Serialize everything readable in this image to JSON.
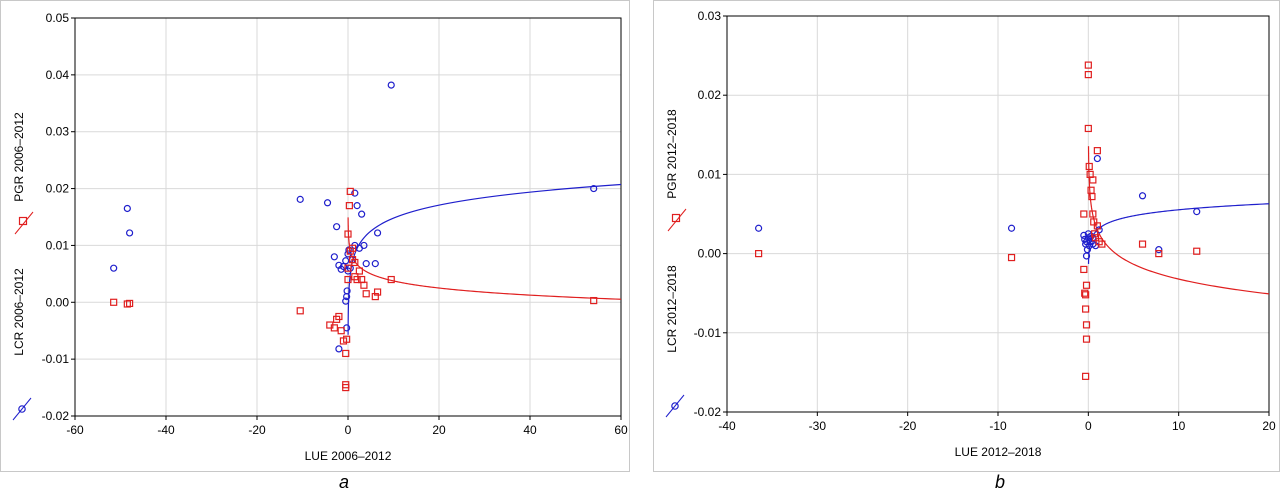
{
  "chart_data": [
    {
      "type": "scatter",
      "caption": "a",
      "xlabel": "LUE 2006–2012",
      "ylabel_top": "PGR 2006–2012",
      "ylabel_bottom": "LCR 2006–2012",
      "xlim": [
        -60,
        60
      ],
      "ylim": [
        -0.02,
        0.05
      ],
      "xticks": [
        -60,
        -40,
        -20,
        0,
        20,
        40,
        60
      ],
      "yticks": [
        -0.02,
        -0.01,
        0.0,
        0.01,
        0.02,
        0.03,
        0.04,
        0.05
      ],
      "ytick_labels": [
        "-0.02",
        "-0.01",
        "0.00",
        "0.01",
        "0.02",
        "0.03",
        "0.04",
        "0.05"
      ],
      "grid": true,
      "colors": {
        "LCR": "#1f1fcc",
        "PGR": "#e01f1f"
      },
      "series": [
        {
          "name": "LCR 2006–2012",
          "marker": "circle",
          "points": [
            [
              -51.5,
              0.006
            ],
            [
              -48.5,
              0.0165
            ],
            [
              -48,
              0.0122
            ],
            [
              -10.5,
              0.0181
            ],
            [
              -4.5,
              0.0175
            ],
            [
              -3,
              0.008
            ],
            [
              -2.5,
              0.0133
            ],
            [
              -2,
              0.0065
            ],
            [
              -1.5,
              0.0058
            ],
            [
              -1,
              0.0063
            ],
            [
              -0.5,
              0.0073
            ],
            [
              -0.5,
              0.0002
            ],
            [
              -0.3,
              0.001
            ],
            [
              -0.3,
              -0.0045
            ],
            [
              -0.2,
              0.002
            ],
            [
              0,
              0.0055
            ],
            [
              0,
              0.0085
            ],
            [
              0.2,
              0.0092
            ],
            [
              0.5,
              0.006
            ],
            [
              1,
              0.0075
            ],
            [
              1.5,
              0.01
            ],
            [
              1.5,
              0.0192
            ],
            [
              2,
              0.017
            ],
            [
              2.5,
              0.0095
            ],
            [
              3,
              0.0155
            ],
            [
              3.5,
              0.01
            ],
            [
              4,
              0.0068
            ],
            [
              6,
              0.0068
            ],
            [
              6.5,
              0.0122
            ],
            [
              9.5,
              0.0382
            ],
            [
              -2,
              -0.0082
            ],
            [
              54,
              0.02
            ]
          ],
          "fit": {
            "type": "log",
            "a": 0.0072,
            "b": 0.0033
          }
        },
        {
          "name": "PGR 2006–2012",
          "marker": "square",
          "points": [
            [
              -51.5,
              0.0
            ],
            [
              -48.5,
              -0.0003
            ],
            [
              -48,
              -0.0002
            ],
            [
              -10.5,
              -0.0015
            ],
            [
              -4,
              -0.004
            ],
            [
              -3,
              -0.0045
            ],
            [
              -2.5,
              -0.003
            ],
            [
              -2,
              -0.0025
            ],
            [
              -1.5,
              -0.005
            ],
            [
              -1,
              -0.0068
            ],
            [
              -0.5,
              -0.009
            ],
            [
              -0.5,
              -0.0145
            ],
            [
              -0.5,
              -0.015
            ],
            [
              -0.3,
              -0.0065
            ],
            [
              0,
              0.004
            ],
            [
              0,
              0.006
            ],
            [
              0,
              0.012
            ],
            [
              0.3,
              0.017
            ],
            [
              0.5,
              0.0195
            ],
            [
              0.5,
              0.009
            ],
            [
              1,
              0.0095
            ],
            [
              1,
              0.0075
            ],
            [
              1.5,
              0.007
            ],
            [
              1.5,
              0.0045
            ],
            [
              2,
              0.004
            ],
            [
              2.5,
              0.0055
            ],
            [
              3,
              0.004
            ],
            [
              3.5,
              0.003
            ],
            [
              4,
              0.0015
            ],
            [
              6,
              0.001
            ],
            [
              6.5,
              0.0018
            ],
            [
              9.5,
              0.004
            ],
            [
              54,
              0.0003
            ]
          ],
          "fit": {
            "type": "log",
            "a": 0.0079,
            "b": -0.0018
          }
        }
      ]
    },
    {
      "type": "scatter",
      "caption": "b",
      "xlabel": "LUE 2012–2018",
      "ylabel_top": "PGR 2012–2018",
      "ylabel_bottom": "LCR 2012–2018",
      "xlim": [
        -40,
        20
      ],
      "ylim": [
        -0.02,
        0.03
      ],
      "xticks": [
        -40,
        -30,
        -20,
        -10,
        0,
        10,
        20
      ],
      "yticks": [
        -0.02,
        -0.01,
        0.0,
        0.01,
        0.02,
        0.03
      ],
      "ytick_labels": [
        "-0.02",
        "-0.01",
        "0.00",
        "0.01",
        "0.02",
        "0.03"
      ],
      "grid": true,
      "colors": {
        "LCR": "#1f1fcc",
        "PGR": "#e01f1f"
      },
      "series": [
        {
          "name": "LCR 2012–2018",
          "marker": "circle",
          "points": [
            [
              -36.5,
              0.0032
            ],
            [
              -8.5,
              0.0032
            ],
            [
              -0.5,
              0.0023
            ],
            [
              -0.4,
              0.0018
            ],
            [
              -0.3,
              0.0012
            ],
            [
              -0.2,
              -0.0003
            ],
            [
              -0.2,
              0.0015
            ],
            [
              -0.1,
              0.0005
            ],
            [
              0,
              0.002
            ],
            [
              0,
              0.0025
            ],
            [
              0.1,
              0.001
            ],
            [
              0.2,
              0.0015
            ],
            [
              0.3,
              0.0022
            ],
            [
              0.5,
              0.002
            ],
            [
              0.5,
              0.0012
            ],
            [
              0.8,
              0.001
            ],
            [
              1,
              0.012
            ],
            [
              1.2,
              0.003
            ],
            [
              6,
              0.0073
            ],
            [
              7.8,
              0.0005
            ],
            [
              12,
              0.0053
            ]
          ],
          "fit": {
            "type": "log",
            "a": 0.003,
            "b": 0.0011
          }
        },
        {
          "name": "PGR 2012–2018",
          "marker": "square",
          "points": [
            [
              -36.5,
              0.0
            ],
            [
              -8.5,
              -0.0005
            ],
            [
              -0.5,
              0.005
            ],
            [
              -0.5,
              -0.002
            ],
            [
              -0.4,
              -0.005
            ],
            [
              -0.3,
              -0.0052
            ],
            [
              -0.3,
              -0.007
            ],
            [
              -0.2,
              -0.009
            ],
            [
              -0.2,
              -0.0108
            ],
            [
              -0.3,
              -0.0155
            ],
            [
              -0.2,
              -0.004
            ],
            [
              0,
              0.0238
            ],
            [
              0,
              0.0226
            ],
            [
              0,
              0.0158
            ],
            [
              0.1,
              0.011
            ],
            [
              0.2,
              0.01
            ],
            [
              0.3,
              0.008
            ],
            [
              0.4,
              0.0072
            ],
            [
              0.5,
              0.0093
            ],
            [
              0.5,
              0.005
            ],
            [
              0.6,
              0.004
            ],
            [
              0.7,
              0.0025
            ],
            [
              0.8,
              0.002
            ],
            [
              1,
              0.013
            ],
            [
              1,
              0.0035
            ],
            [
              1.2,
              0.0015
            ],
            [
              1.5,
              0.0012
            ],
            [
              6,
              0.0012
            ],
            [
              7.8,
              0.0
            ],
            [
              12,
              0.0003
            ]
          ],
          "fit": {
            "type": "log",
            "a": 0.003,
            "b": -0.0027
          }
        }
      ]
    }
  ]
}
